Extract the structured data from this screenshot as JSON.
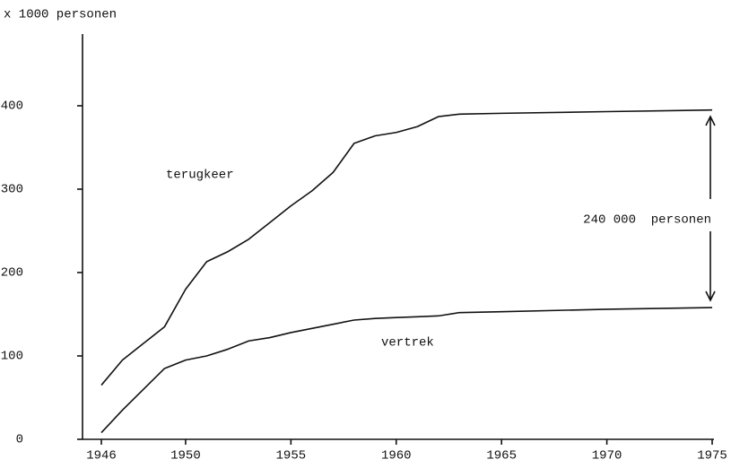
{
  "chart_data": {
    "type": "line",
    "y_axis_label": "x 1000 personen",
    "annotations": [
      "terugkeer",
      "vertrek",
      "240 000  personen"
    ],
    "x": [
      1946,
      1947,
      1948,
      1949,
      1950,
      1951,
      1952,
      1953,
      1954,
      1955,
      1956,
      1957,
      1958,
      1959,
      1960,
      1961,
      1962,
      1963,
      1965,
      1970,
      1975
    ],
    "series": [
      {
        "name": "terugkeer",
        "color": "#111111",
        "values": [
          65,
          95,
          115,
          135,
          180,
          213,
          225,
          240,
          260,
          280,
          298,
          320,
          355,
          364,
          368,
          375,
          387,
          390,
          391,
          393,
          395
        ]
      },
      {
        "name": "vertrek",
        "color": "#111111",
        "values": [
          8,
          35,
          60,
          85,
          95,
          100,
          108,
          118,
          122,
          128,
          133,
          138,
          143,
          145,
          146,
          147,
          148,
          152,
          153,
          156,
          158
        ]
      }
    ],
    "xlim": [
      1946,
      1975
    ],
    "xticks": [
      1946,
      1950,
      1955,
      1960,
      1965,
      1970,
      1975
    ],
    "ylim": [
      0,
      400
    ],
    "yticks": [
      0,
      100,
      200,
      300,
      400
    ],
    "grid": false
  }
}
